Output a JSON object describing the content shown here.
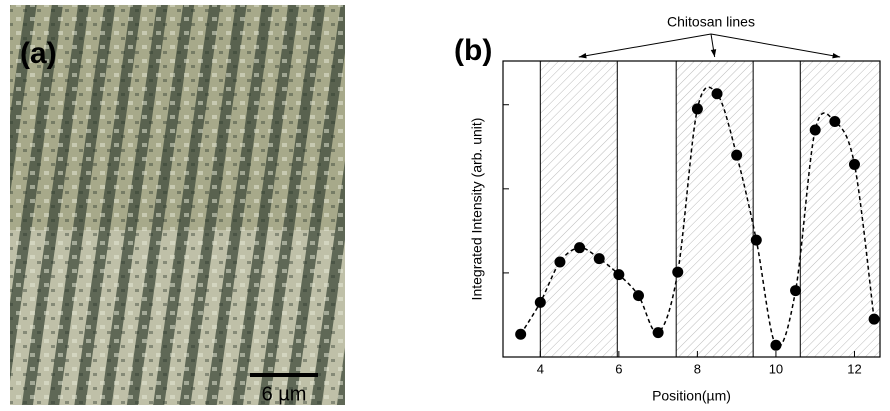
{
  "panel_a": {
    "label": "(a)",
    "scale_bar": "6 µm"
  },
  "chart_data": {
    "type": "line",
    "panel_label": "(b)",
    "annotation": "Chitosan lines",
    "x_label": "Position(µm)",
    "y_label": "Integrated Intensity (arb. unit)",
    "x": [
      3.5,
      4,
      4.5,
      5,
      5.5,
      6,
      6.5,
      7,
      7.5,
      8,
      8.5,
      9,
      9.5,
      10,
      10.5,
      11,
      11.5,
      12,
      12.5
    ],
    "series": [
      {
        "color": "#000000",
        "values": [
          0.27,
          0.65,
          1.13,
          1.3,
          1.17,
          0.98,
          0.73,
          0.29,
          1.01,
          2.95,
          3.13,
          2.4,
          1.39,
          0.14,
          0.79,
          2.7,
          2.8,
          2.29,
          0.45
        ]
      }
    ],
    "shaded_regions": [
      [
        4,
        5.96
      ],
      [
        7.46,
        9.42
      ],
      [
        10.62,
        12.65
      ]
    ],
    "xlim": [
      3.05,
      12.65
    ],
    "xticks": [
      4,
      6,
      8,
      10,
      12
    ],
    "ylim": [
      0,
      3.52
    ],
    "yticks": [
      1,
      2,
      3
    ]
  }
}
